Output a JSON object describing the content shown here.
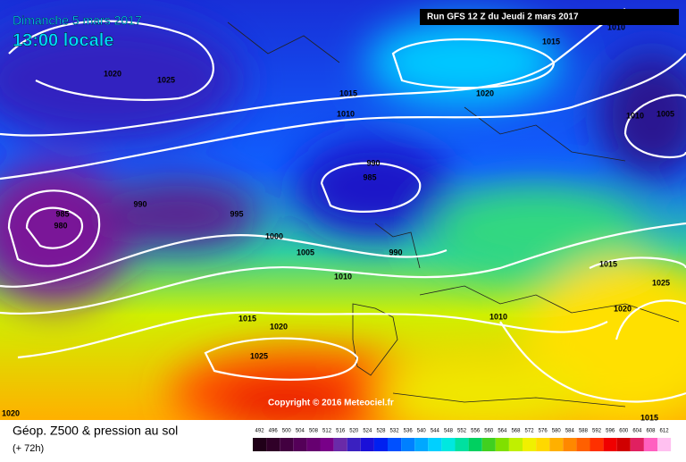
{
  "header": {
    "date": "Dimanche 5 mars 2017",
    "time": "13:00 locale",
    "run": "Run GFS 12 Z du Jeudi 2 mars 2017"
  },
  "isobar_labels": [
    "1020",
    "1025",
    "1015",
    "1010",
    "1020",
    "1015",
    "1010",
    "1010",
    "1005",
    "990",
    "985",
    "985",
    "980",
    "990",
    "995",
    "1000",
    "1005",
    "990",
    "1010",
    "1015",
    "1025",
    "1020",
    "1010",
    "1015",
    "1020",
    "1025",
    "1020",
    "1015"
  ],
  "copyright": "Copyright © 2016 Meteociel.fr",
  "footer": {
    "title": "Géop. Z500 & pression au sol",
    "lead": "(+ 72h)"
  },
  "legend": {
    "items": [
      {
        "label": "492",
        "color": "#200018"
      },
      {
        "label": "496",
        "color": "#300028"
      },
      {
        "label": "500",
        "color": "#420040"
      },
      {
        "label": "504",
        "color": "#540058"
      },
      {
        "label": "508",
        "color": "#660070"
      },
      {
        "label": "512",
        "color": "#780088"
      },
      {
        "label": "516",
        "color": "#6a2aa8"
      },
      {
        "label": "520",
        "color": "#3a20c0"
      },
      {
        "label": "524",
        "color": "#1a10d8"
      },
      {
        "label": "528",
        "color": "#0020f0"
      },
      {
        "label": "532",
        "color": "#0050ff"
      },
      {
        "label": "536",
        "color": "#0080ff"
      },
      {
        "label": "540",
        "color": "#00a8ff"
      },
      {
        "label": "544",
        "color": "#00d0ff"
      },
      {
        "label": "548",
        "color": "#00e8e0"
      },
      {
        "label": "552",
        "color": "#00e0a0"
      },
      {
        "label": "556",
        "color": "#00d060"
      },
      {
        "label": "560",
        "color": "#40d020"
      },
      {
        "label": "564",
        "color": "#80e000"
      },
      {
        "label": "568",
        "color": "#c0f000"
      },
      {
        "label": "572",
        "color": "#f0f000"
      },
      {
        "label": "576",
        "color": "#ffd800"
      },
      {
        "label": "580",
        "color": "#ffb000"
      },
      {
        "label": "584",
        "color": "#ff8800"
      },
      {
        "label": "588",
        "color": "#ff6000"
      },
      {
        "label": "592",
        "color": "#ff3000"
      },
      {
        "label": "596",
        "color": "#f00000"
      },
      {
        "label": "600",
        "color": "#d00000"
      },
      {
        "label": "604",
        "color": "#e02060"
      },
      {
        "label": "608",
        "color": "#ff60c0"
      },
      {
        "label": "612",
        "color": "#ffc0f0"
      }
    ]
  }
}
